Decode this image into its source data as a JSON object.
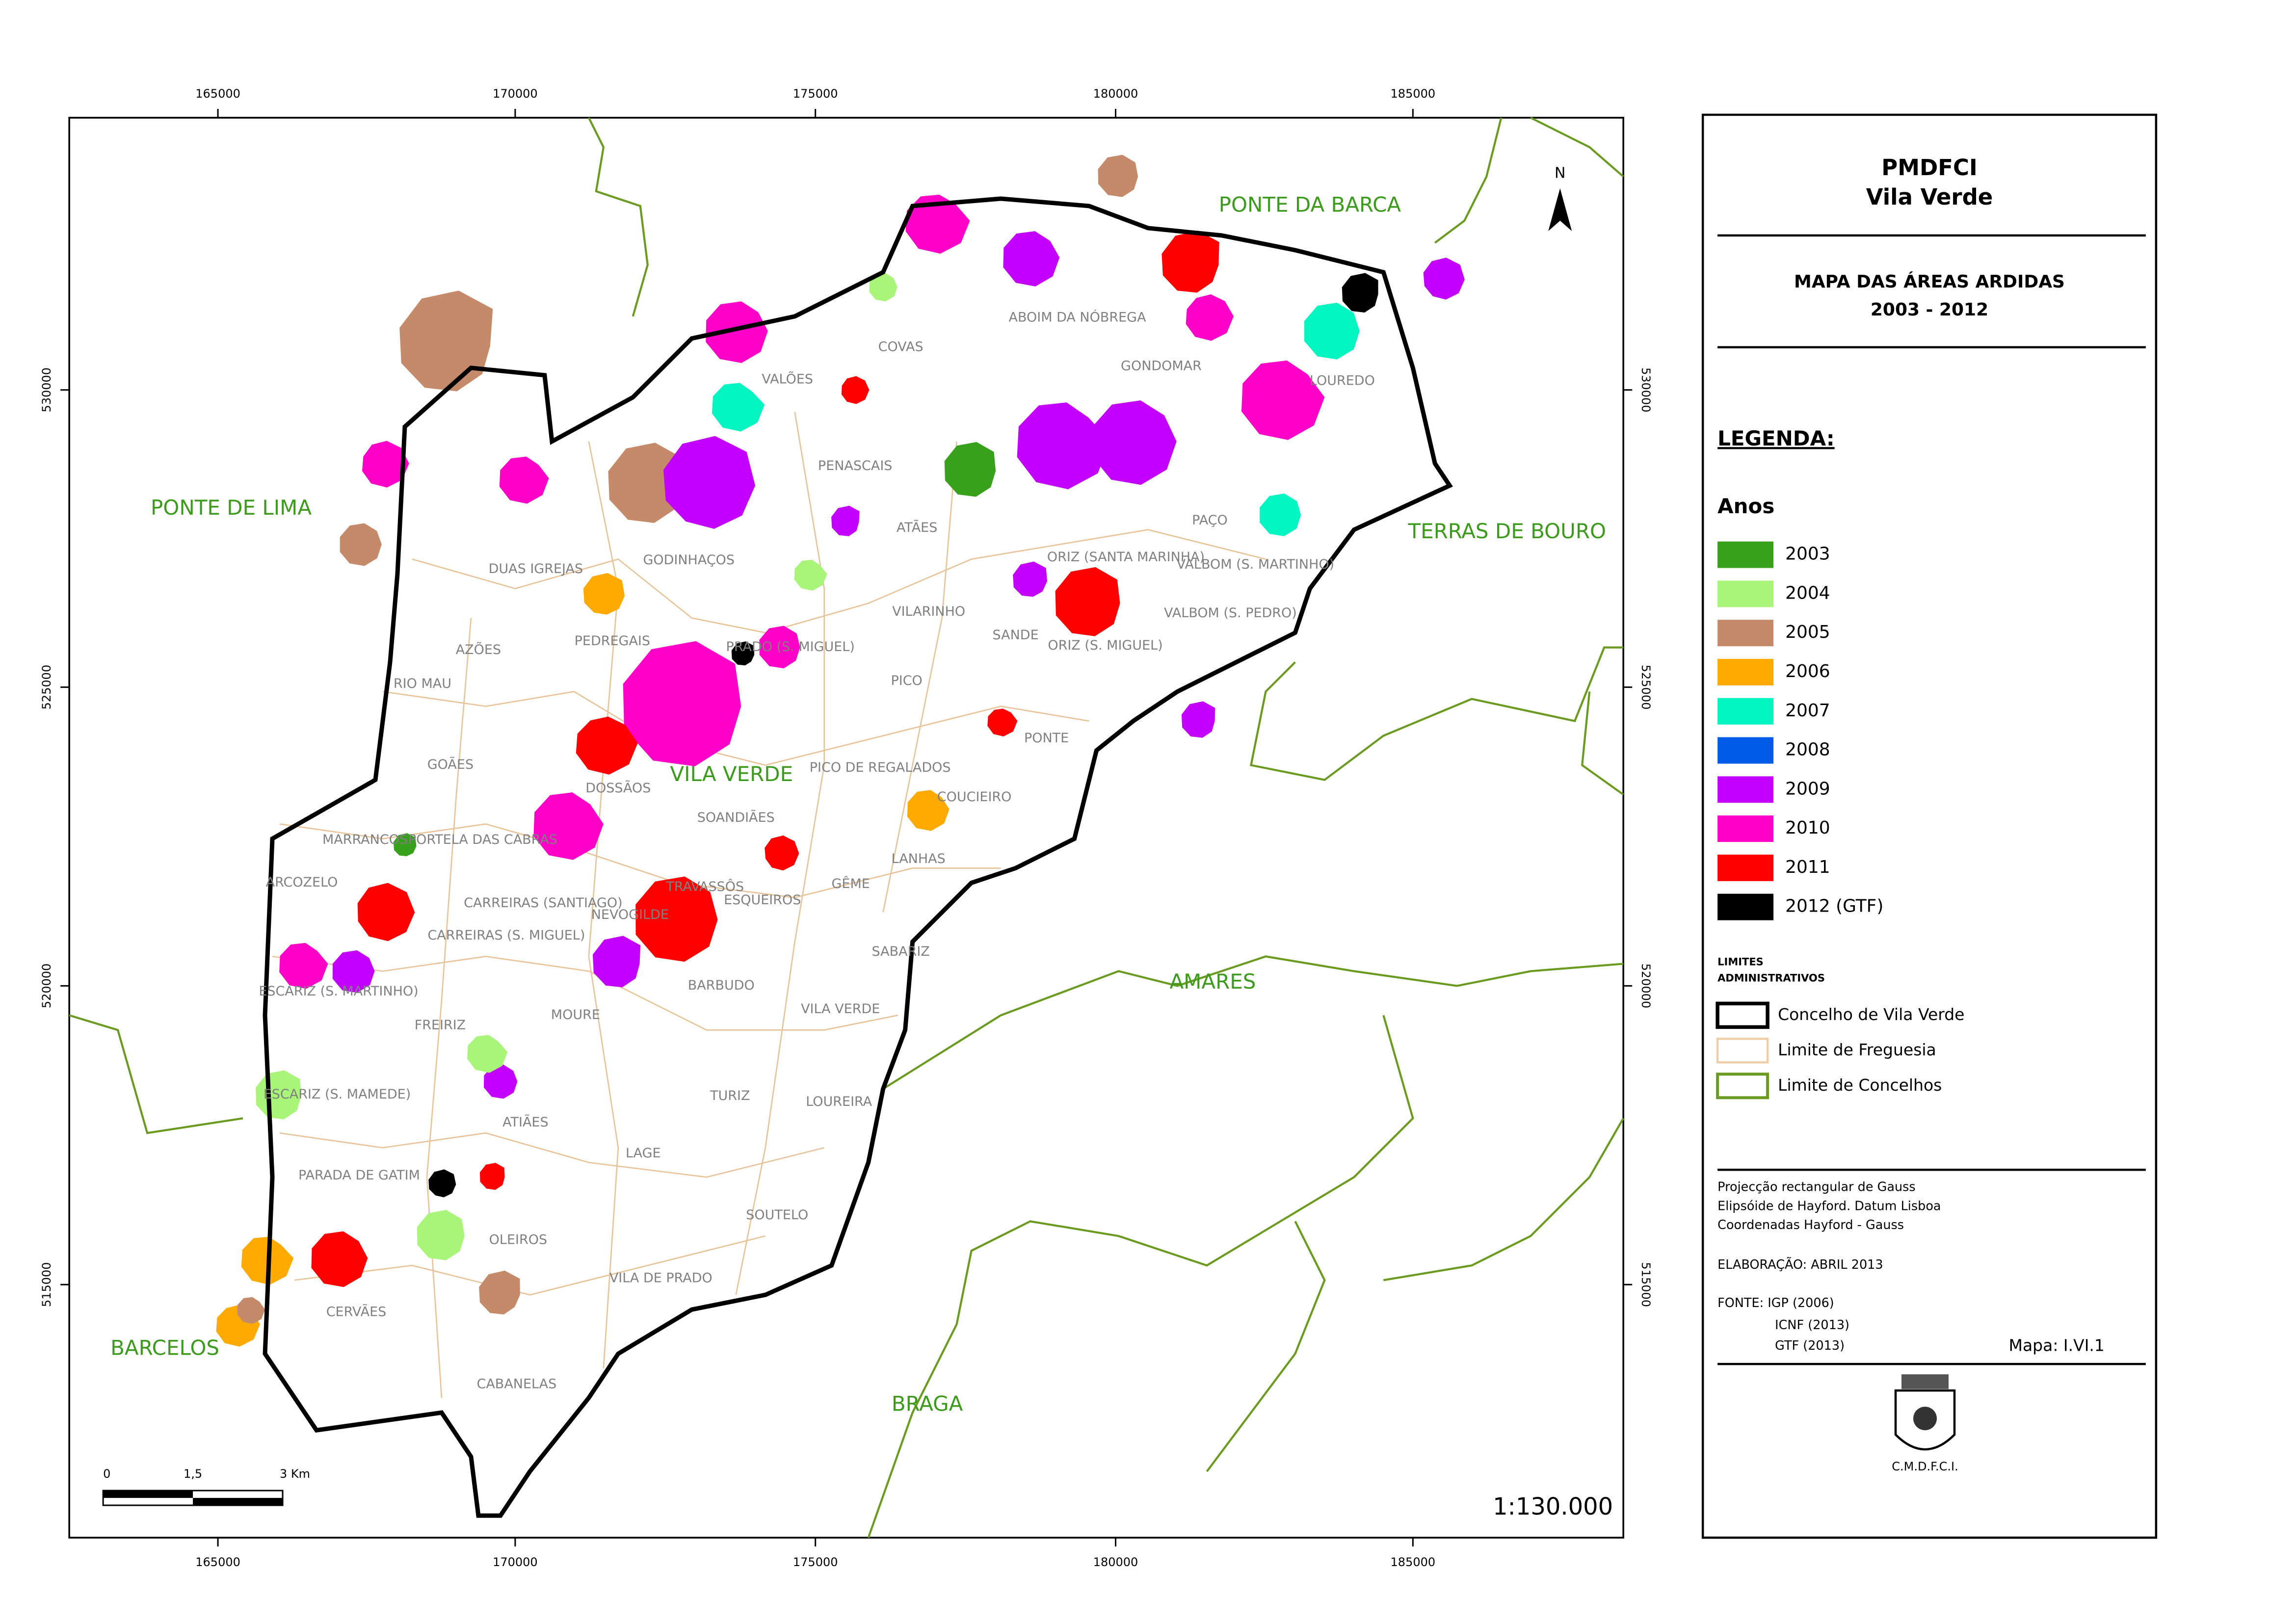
{
  "map": {
    "scale_ratio": "1:130.000",
    "north": "N",
    "x_ticks": [
      165000,
      170000,
      175000,
      180000,
      185000
    ],
    "y_ticks": [
      530000,
      525000,
      520000,
      515000
    ],
    "regions": [
      "PONTE DA BARCA",
      "PONTE DE LIMA",
      "TERRAS DE BOURO",
      "AMARES",
      "BRAGA",
      "BARCELOS",
      "VILA VERDE"
    ],
    "parishes": [
      "VALÕES",
      "COVAS",
      "ABOIM DA NÓBREGA",
      "GONDOMAR",
      "PENASCAIS",
      "DUAS IGREJAS",
      "GODINHAÇOS",
      "ATÃES",
      "ORIZ (SANTA MARINHA)",
      "VALBOM (S. MARTINHO)",
      "PAÇO",
      "PEDREGAIS",
      "AZÕES",
      "PRADO (S. MIGUEL)",
      "VILARINHO",
      "SANDE",
      "ORIZ (S. MIGUEL)",
      "VALBOM (S. PEDRO)",
      "RIO MAU",
      "PICO",
      "PONTE",
      "GOÃES",
      "DOSSÃOS",
      "SOANDIÃES",
      "PICO DE REGALADOS",
      "COUCIEIRO",
      "MARRANCOS",
      "PORTELA DAS CABRAS",
      "LANHAS",
      "ARCOZELO",
      "NEVOGILDE",
      "TRAVASSÔS",
      "ESQUEIROS",
      "GÊME",
      "CARREIRAS (SANTIAGO)",
      "CARREIRAS (S. MIGUEL)",
      "SABARIZ",
      "ESCARIZ (S. MARTINHO)",
      "BARBUDO",
      "FREIRIZ",
      "MOURE",
      "VILA VERDE",
      "ESCARIZ (S. MAMEDE)",
      "TURIZ",
      "LOUREIRA",
      "ATIÃES",
      "LAGE",
      "PARADA DE GATIM",
      "SOUTELO",
      "OLEIROS",
      "VILA DE PRADO",
      "CERVÃES",
      "CABANELAS",
      "LOUREDO"
    ],
    "scale_bar": [
      "0",
      "1,5",
      "3  Km"
    ]
  },
  "legend": {
    "title": "PMDFCI",
    "subtitle": "Vila Verde",
    "map_title": "MAPA DAS ÁREAS ARDIDAS",
    "period": "2003 - 2012",
    "heading": "LEGENDA:",
    "years_heading": "Anos",
    "years": [
      {
        "label": "2003",
        "color": "#38a11c"
      },
      {
        "label": "2004",
        "color": "#a8f57a"
      },
      {
        "label": "2005",
        "color": "#c48a6a"
      },
      {
        "label": "2006",
        "color": "#ffaa00"
      },
      {
        "label": "2007",
        "color": "#00f5c0"
      },
      {
        "label": "2008",
        "color": "#005ce6"
      },
      {
        "label": "2009",
        "color": "#c300ff"
      },
      {
        "label": "2010",
        "color": "#ff00c8"
      },
      {
        "label": "2011",
        "color": "#ff0000"
      },
      {
        "label": "2012 (GTF)",
        "color": "#000000"
      }
    ],
    "limits_heading": [
      "LIMITES",
      "ADMINISTRATIVOS"
    ],
    "limits": [
      "Concelho de Vila Verde",
      "Limite de Freguesia",
      "Limite de Concelhos"
    ],
    "notes": [
      "Projecção rectangular de Gauss",
      "Elipsóide de Hayford. Datum Lisboa",
      "Coordenadas Hayford - Gauss"
    ],
    "elaboration": "ELABORAÇÃO: ABRIL 2013",
    "sources": [
      "FONTE: IGP (2006)",
      "ICNF (2013)",
      "GTF (2013)"
    ],
    "map_id": "Mapa: I.VI.1",
    "emblem": "C.M.D.F.C.I."
  }
}
